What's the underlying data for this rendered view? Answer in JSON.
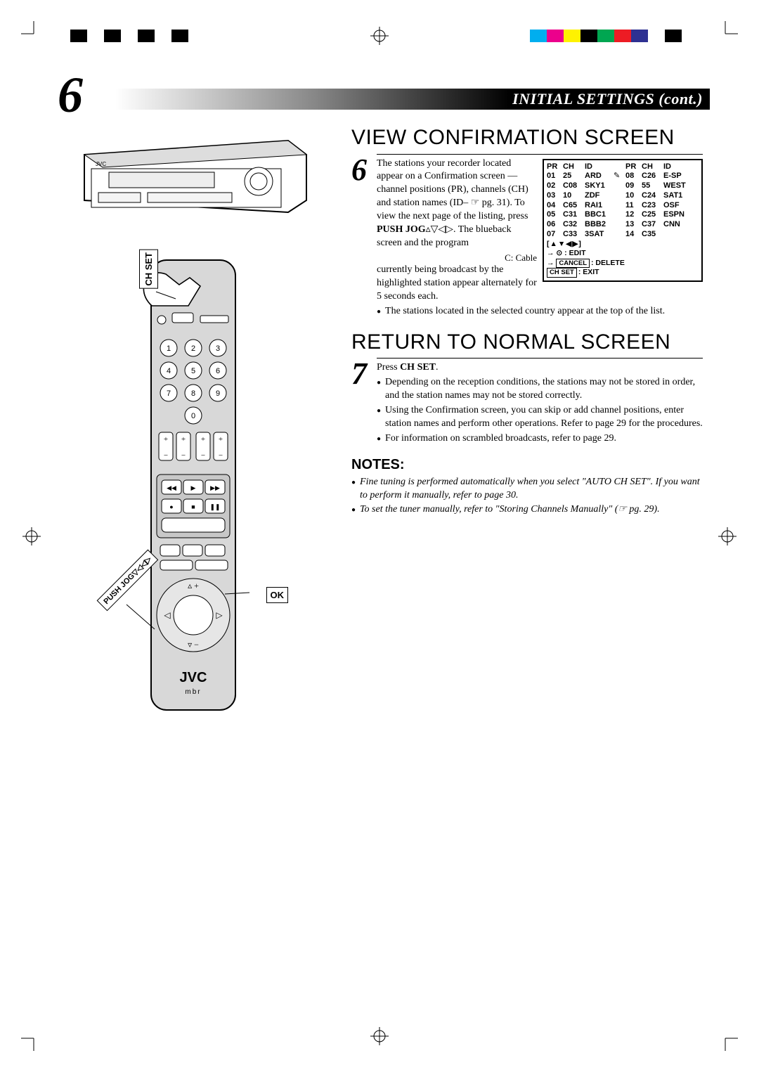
{
  "print_bars": {
    "left": [
      "#000000",
      "#ffffff",
      "#000000",
      "#ffffff",
      "#000000",
      "#ffffff",
      "#000000"
    ],
    "right": [
      "#00aeef",
      "#ec008c",
      "#fff200",
      "#000000",
      "#00a651",
      "#ed1c24",
      "#2e3192",
      "#ffffff",
      "#000000"
    ]
  },
  "page_number": "6",
  "header_title": "INITIAL SETTINGS (cont.)",
  "callouts": {
    "chset": "CH SET",
    "ok": "OK",
    "pushjog": "PUSH JOG▽◁◁▷"
  },
  "step6": {
    "headline": "VIEW CONFIRMATION SCREEN",
    "num": "6",
    "para1": "The stations your recorder located appear on a Confirmation screen — channel positions (PR), channels (CH) and station names (ID– ☞ pg. 31). To view the next page of the listing, press ",
    "bold1": "PUSH JOG",
    "para1b": "▵▽◁▷. The blueback screen and the program",
    "ccable": "C: Cable",
    "para2": "currently being broadcast by the highlighted station appear alternately for 5 seconds each.",
    "bul1": "The stations located in the selected country appear at the top of the list."
  },
  "conf": {
    "headers": [
      "PR",
      "CH",
      "ID",
      "",
      "PR",
      "CH",
      "ID"
    ],
    "rows": [
      [
        "01",
        "25",
        "ARD",
        "✎",
        "08",
        "C26",
        "E-SP"
      ],
      [
        "02",
        "C08",
        "SKY1",
        "",
        "09",
        "55",
        "WEST"
      ],
      [
        "03",
        "10",
        "ZDF",
        "",
        "10",
        "C24",
        "SAT1"
      ],
      [
        "04",
        "C65",
        "RAI1",
        "",
        "11",
        "C23",
        "OSF"
      ],
      [
        "05",
        "C31",
        "BBC1",
        "",
        "12",
        "C25",
        "ESPN"
      ],
      [
        "06",
        "C32",
        "BBB2",
        "",
        "13",
        "C37",
        "CNN"
      ],
      [
        "07",
        "C33",
        "3SAT",
        "",
        "14",
        "C35",
        ""
      ]
    ],
    "f1": "[▲▼◀▶]",
    "f2a": "→ ⊙ :",
    "f2b": "EDIT",
    "f3a": "→",
    "f3b": "CANCEL",
    "f3c": ": DELETE",
    "f4a": "CH SET",
    "f4b": ": EXIT"
  },
  "step7": {
    "headline": "RETURN TO NORMAL SCREEN",
    "num": "7",
    "para1a": "Press ",
    "para1b": "CH SET",
    "para1c": ".",
    "bul1": "Depending on the reception conditions, the stations may not be stored in order, and the station names may not be stored correctly.",
    "bul2": "Using the Confirmation screen, you can skip or add channel positions, enter station names and perform other operations. Refer to page 29 for the procedures.",
    "bul3": "For information on scrambled broadcasts, refer to page 29."
  },
  "notes": {
    "head": "NOTES:",
    "n1": "Fine tuning is performed automatically when you select \"AUTO CH SET\". If you want to perform it manually, refer to page 30.",
    "n2": "To set the tuner manually, refer to \"Storing Channels Manually\" (☞ pg. 29)."
  },
  "brand": "JVC"
}
